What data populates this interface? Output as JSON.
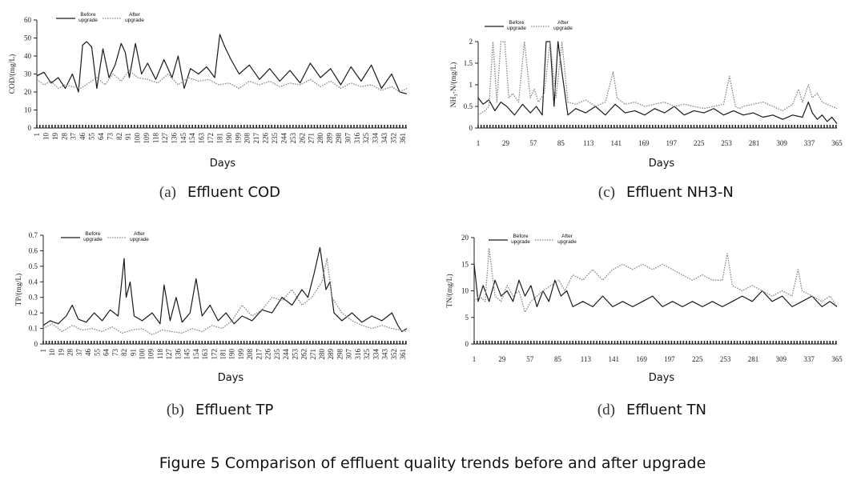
{
  "figure_caption": "Figure 5 Comparison of effluent quality trends before and after upgrade",
  "chart_data": [
    {
      "id": "a",
      "type": "line",
      "caption_letter": "(a)",
      "caption_text": "Effluent COD",
      "ylabel": "COD/(mg/L)",
      "xlabel": "Days",
      "ylim": [
        0,
        60
      ],
      "yticks": [
        "0",
        "10",
        "20",
        "30",
        "40",
        "50",
        "60"
      ],
      "xlim": [
        1,
        365
      ],
      "xticks": [
        "1",
        "10",
        "19",
        "28",
        "37",
        "46",
        "55",
        "64",
        "73",
        "82",
        "91",
        "100",
        "109",
        "118",
        "127",
        "136",
        "145",
        "154",
        "163",
        "172",
        "181",
        "190",
        "199",
        "208",
        "217",
        "226",
        "235",
        "244",
        "253",
        "262",
        "271",
        "280",
        "289",
        "298",
        "307",
        "316",
        "325",
        "334",
        "343",
        "352",
        "361"
      ],
      "legend": [
        "Before upgrade",
        "After upgrade"
      ],
      "series": [
        {
          "name": "Before upgrade",
          "style": "solid",
          "x": [
            1,
            8,
            15,
            22,
            29,
            36,
            42,
            46,
            50,
            55,
            60,
            66,
            72,
            78,
            84,
            88,
            92,
            98,
            104,
            110,
            118,
            126,
            134,
            140,
            146,
            152,
            160,
            168,
            176,
            181,
            186,
            192,
            200,
            210,
            220,
            230,
            240,
            250,
            260,
            270,
            280,
            290,
            300,
            310,
            320,
            330,
            340,
            350,
            358,
            365
          ],
          "values": [
            29,
            31,
            25,
            28,
            22,
            30,
            20,
            46,
            48,
            45,
            22,
            44,
            28,
            35,
            47,
            42,
            28,
            47,
            30,
            36,
            27,
            38,
            28,
            40,
            22,
            33,
            30,
            34,
            28,
            52,
            45,
            38,
            30,
            35,
            27,
            33,
            26,
            32,
            25,
            36,
            28,
            33,
            24,
            34,
            26,
            35,
            22,
            30,
            20,
            19
          ]
        },
        {
          "name": "After upgrade",
          "style": "dotted",
          "x": [
            1,
            8,
            15,
            22,
            29,
            36,
            44,
            52,
            60,
            68,
            76,
            84,
            92,
            100,
            110,
            120,
            130,
            140,
            150,
            160,
            170,
            180,
            190,
            200,
            210,
            220,
            230,
            240,
            250,
            260,
            270,
            280,
            290,
            300,
            310,
            320,
            330,
            340,
            350,
            358,
            365
          ],
          "values": [
            27,
            24,
            26,
            22,
            24,
            23,
            22,
            25,
            28,
            24,
            30,
            26,
            32,
            28,
            27,
            25,
            30,
            24,
            28,
            26,
            27,
            24,
            25,
            22,
            26,
            24,
            26,
            23,
            25,
            24,
            27,
            23,
            26,
            22,
            25,
            23,
            24,
            21,
            23,
            20,
            22
          ]
        }
      ]
    },
    {
      "id": "c",
      "type": "line",
      "caption_letter": "(c)",
      "caption_text": "Effluent NH3-N",
      "ylabel": "NH₃-N/(mg/L)",
      "xlabel": "Days",
      "ylim": [
        0,
        2
      ],
      "yticks": [
        "0",
        "0.5",
        "1",
        "1.5",
        "2"
      ],
      "xlim": [
        1,
        365
      ],
      "xticks": [
        "1",
        "29",
        "57",
        "85",
        "113",
        "141",
        "169",
        "197",
        "225",
        "253",
        "281",
        "309",
        "337",
        "365"
      ],
      "legend": [
        "Before upgrade",
        "After upgrade"
      ],
      "series": [
        {
          "name": "Before upgrade",
          "style": "solid",
          "x": [
            1,
            6,
            12,
            18,
            24,
            30,
            38,
            46,
            54,
            60,
            66,
            70,
            74,
            78,
            82,
            86,
            92,
            100,
            110,
            120,
            130,
            140,
            150,
            160,
            170,
            180,
            190,
            200,
            210,
            220,
            230,
            240,
            250,
            260,
            270,
            280,
            290,
            300,
            310,
            320,
            330,
            336,
            340,
            345,
            350,
            355,
            360,
            365
          ],
          "values": [
            0.7,
            0.55,
            0.65,
            0.4,
            0.6,
            0.5,
            0.3,
            0.55,
            0.35,
            0.5,
            0.3,
            2.0,
            2.0,
            0.5,
            2.0,
            1.3,
            0.3,
            0.45,
            0.35,
            0.5,
            0.3,
            0.55,
            0.35,
            0.4,
            0.3,
            0.45,
            0.35,
            0.5,
            0.3,
            0.4,
            0.35,
            0.45,
            0.3,
            0.4,
            0.3,
            0.35,
            0.25,
            0.3,
            0.2,
            0.3,
            0.25,
            0.6,
            0.35,
            0.2,
            0.3,
            0.15,
            0.25,
            0.1
          ]
        },
        {
          "name": "After upgrade",
          "style": "dotted",
          "x": [
            1,
            8,
            12,
            16,
            20,
            24,
            28,
            32,
            36,
            42,
            48,
            54,
            58,
            62,
            68,
            74,
            80,
            86,
            92,
            100,
            110,
            120,
            130,
            138,
            142,
            150,
            160,
            170,
            180,
            190,
            200,
            210,
            220,
            230,
            240,
            250,
            256,
            262,
            266,
            270,
            280,
            290,
            300,
            310,
            320,
            326,
            330,
            336,
            340,
            345,
            350,
            355,
            360,
            365
          ],
          "values": [
            0.3,
            0.4,
            0.5,
            2.0,
            0.6,
            2.0,
            2.0,
            0.7,
            0.8,
            0.6,
            2.0,
            0.7,
            0.9,
            0.6,
            0.8,
            2.0,
            0.7,
            2.0,
            0.6,
            0.55,
            0.65,
            0.5,
            0.6,
            1.3,
            0.7,
            0.55,
            0.6,
            0.5,
            0.55,
            0.6,
            0.5,
            0.55,
            0.5,
            0.45,
            0.5,
            0.55,
            1.2,
            0.5,
            0.45,
            0.5,
            0.55,
            0.6,
            0.5,
            0.4,
            0.55,
            0.9,
            0.6,
            1.0,
            0.7,
            0.8,
            0.6,
            0.55,
            0.5,
            0.45
          ]
        }
      ]
    },
    {
      "id": "b",
      "type": "line",
      "caption_letter": "(b)",
      "caption_text": "Effluent TP",
      "ylabel": "TP/(mg/L)",
      "xlabel": "Days",
      "ylim": [
        0,
        0.7
      ],
      "yticks": [
        "0",
        "0.1",
        "0.2",
        "0.3",
        "0.4",
        "0.5",
        "0.6",
        "0.7"
      ],
      "xlim": [
        1,
        365
      ],
      "xticks": [
        "1",
        "10",
        "19",
        "28",
        "37",
        "46",
        "55",
        "64",
        "73",
        "82",
        "91",
        "100",
        "109",
        "118",
        "127",
        "136",
        "145",
        "154",
        "163",
        "172",
        "181",
        "190",
        "199",
        "208",
        "217",
        "226",
        "235",
        "244",
        "253",
        "262",
        "271",
        "280",
        "289",
        "298",
        "307",
        "316",
        "325",
        "334",
        "343",
        "352",
        "361"
      ],
      "legend": [
        "Before upgrade",
        "After upgrade"
      ],
      "series": [
        {
          "name": "Before upgrade",
          "style": "solid",
          "x": [
            1,
            8,
            16,
            24,
            30,
            36,
            44,
            52,
            60,
            68,
            76,
            82,
            84,
            88,
            92,
            100,
            110,
            118,
            122,
            128,
            134,
            140,
            148,
            154,
            160,
            168,
            176,
            184,
            192,
            200,
            210,
            220,
            230,
            240,
            250,
            260,
            266,
            272,
            278,
            284,
            288,
            292,
            300,
            310,
            320,
            330,
            340,
            350,
            356,
            360,
            365
          ],
          "values": [
            0.12,
            0.15,
            0.13,
            0.18,
            0.25,
            0.16,
            0.14,
            0.2,
            0.15,
            0.22,
            0.18,
            0.55,
            0.3,
            0.4,
            0.18,
            0.15,
            0.2,
            0.13,
            0.38,
            0.15,
            0.3,
            0.14,
            0.2,
            0.42,
            0.18,
            0.25,
            0.15,
            0.2,
            0.13,
            0.18,
            0.15,
            0.22,
            0.2,
            0.3,
            0.25,
            0.35,
            0.3,
            0.45,
            0.62,
            0.35,
            0.4,
            0.2,
            0.15,
            0.2,
            0.14,
            0.18,
            0.15,
            0.2,
            0.12,
            0.08,
            0.1
          ]
        },
        {
          "name": "After upgrade",
          "style": "dotted",
          "x": [
            1,
            10,
            20,
            30,
            40,
            50,
            60,
            70,
            80,
            90,
            100,
            110,
            120,
            130,
            140,
            150,
            160,
            170,
            180,
            190,
            200,
            210,
            220,
            230,
            240,
            250,
            260,
            270,
            280,
            285,
            290,
            300,
            310,
            320,
            330,
            340,
            350,
            358,
            365
          ],
          "values": [
            0.1,
            0.13,
            0.08,
            0.12,
            0.09,
            0.1,
            0.08,
            0.11,
            0.07,
            0.09,
            0.1,
            0.06,
            0.09,
            0.08,
            0.07,
            0.1,
            0.08,
            0.12,
            0.1,
            0.15,
            0.25,
            0.18,
            0.22,
            0.3,
            0.28,
            0.35,
            0.25,
            0.3,
            0.4,
            0.55,
            0.3,
            0.2,
            0.15,
            0.12,
            0.1,
            0.12,
            0.1,
            0.09,
            0.08
          ]
        }
      ]
    },
    {
      "id": "d",
      "type": "line",
      "caption_letter": "(d)",
      "caption_text": "Effluent TN",
      "ylabel": "TN/(mg/L)",
      "xlabel": "Days",
      "ylim": [
        0,
        20
      ],
      "yticks": [
        "0",
        "5",
        "10",
        "15",
        "20"
      ],
      "xlim": [
        1,
        365
      ],
      "xticks": [
        "1",
        "29",
        "57",
        "85",
        "113",
        "141",
        "169",
        "197",
        "225",
        "253",
        "281",
        "309",
        "337",
        "365"
      ],
      "legend": [
        "Before upgrade",
        "After upgrade"
      ],
      "series": [
        {
          "name": "Before upgrade",
          "style": "solid",
          "x": [
            1,
            5,
            10,
            16,
            22,
            28,
            34,
            40,
            46,
            52,
            58,
            64,
            70,
            76,
            82,
            88,
            94,
            100,
            110,
            120,
            130,
            140,
            150,
            160,
            170,
            180,
            190,
            200,
            210,
            220,
            230,
            240,
            250,
            260,
            270,
            280,
            290,
            300,
            310,
            320,
            330,
            340,
            350,
            358,
            365
          ],
          "values": [
            15,
            8,
            11,
            8,
            12,
            9,
            10,
            8,
            12,
            9,
            11,
            7,
            10,
            8,
            12,
            9,
            10,
            7,
            8,
            7,
            9,
            7,
            8,
            7,
            8,
            9,
            7,
            8,
            7,
            8,
            7,
            8,
            7,
            8,
            9,
            8,
            10,
            8,
            9,
            7,
            8,
            9,
            7,
            8,
            7
          ]
        },
        {
          "name": "After upgrade",
          "style": "dotted",
          "x": [
            1,
            6,
            12,
            16,
            22,
            28,
            34,
            40,
            46,
            52,
            58,
            64,
            70,
            78,
            86,
            92,
            100,
            110,
            120,
            130,
            140,
            150,
            160,
            170,
            180,
            190,
            200,
            210,
            220,
            230,
            240,
            250,
            255,
            260,
            270,
            280,
            290,
            300,
            310,
            320,
            326,
            330,
            340,
            350,
            358,
            365
          ],
          "values": [
            8,
            9,
            8,
            18,
            9,
            8,
            11,
            9,
            10,
            6,
            8,
            9,
            10,
            11,
            12,
            10,
            13,
            12,
            14,
            12,
            14,
            15,
            14,
            15,
            14,
            15,
            14,
            13,
            12,
            13,
            12,
            12,
            17,
            11,
            10,
            11,
            10,
            9,
            10,
            9,
            14,
            10,
            9,
            8,
            9,
            7
          ]
        }
      ]
    }
  ]
}
